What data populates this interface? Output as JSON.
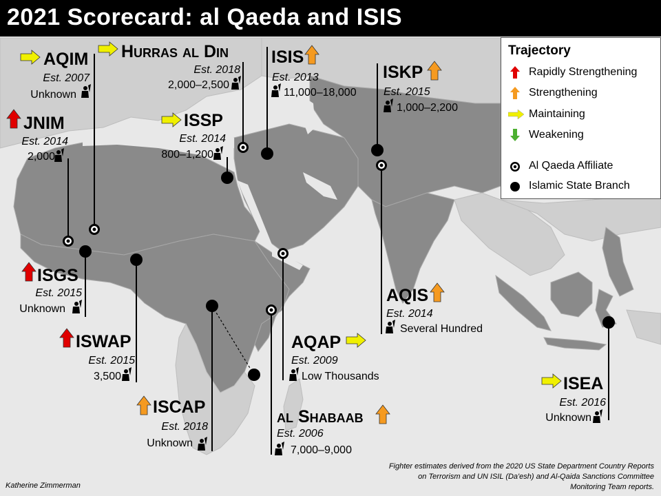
{
  "title": "2021 Scorecard: al Qaeda and ISIS",
  "legend": {
    "title": "Trajectory",
    "items": [
      {
        "label": "Rapidly Strengthening",
        "icon": "red-up-arrow-icon",
        "color": "#e00000"
      },
      {
        "label": "Strengthening",
        "icon": "orange-up-arrow-icon",
        "color": "#f59a20"
      },
      {
        "label": "Maintaining",
        "icon": "yellow-right-arrow-icon",
        "color": "#f0f000"
      },
      {
        "label": "Weakening",
        "icon": "green-down-arrow-icon",
        "color": "#4caf30"
      }
    ],
    "markers": [
      {
        "label": "Al Qaeda Affiliate",
        "icon": "al-qaeda-affiliate-marker-icon"
      },
      {
        "label": "Islamic State Branch",
        "icon": "islamic-state-branch-marker-icon"
      }
    ]
  },
  "groups": [
    {
      "name": "AQIM",
      "est": "Est. 2007",
      "fighters": "Unknown",
      "trajectory": "Maintaining",
      "type": "Al Qaeda Affiliate"
    },
    {
      "name": "Hurras al Din",
      "est": "Est. 2018",
      "fighters": "2,000–2,500",
      "trajectory": "Maintaining",
      "type": "Al Qaeda Affiliate"
    },
    {
      "name": "ISIS",
      "est": "Est. 2013",
      "fighters": "11,000–18,000",
      "trajectory": "Strengthening",
      "type": "Islamic State Branch"
    },
    {
      "name": "ISKP",
      "est": "Est. 2015",
      "fighters": "1,000–2,200",
      "trajectory": "Strengthening",
      "type": "Islamic State Branch"
    },
    {
      "name": "JNIM",
      "est": "Est. 2014",
      "fighters": "2,000",
      "trajectory": "Rapidly Strengthening",
      "type": "Al Qaeda Affiliate"
    },
    {
      "name": "ISSP",
      "est": "Est. 2014",
      "fighters": "800–1,200",
      "trajectory": "Maintaining",
      "type": "Islamic State Branch"
    },
    {
      "name": "ISGS",
      "est": "Est. 2015",
      "fighters": "Unknown",
      "trajectory": "Rapidly Strengthening",
      "type": "Islamic State Branch"
    },
    {
      "name": "AQIS",
      "est": "Est. 2014",
      "fighters": "Several Hundred",
      "trajectory": "Strengthening",
      "type": "Al Qaeda Affiliate"
    },
    {
      "name": "ISWAP",
      "est": "Est. 2015",
      "fighters": "3,500",
      "trajectory": "Rapidly Strengthening",
      "type": "Islamic State Branch"
    },
    {
      "name": "AQAP",
      "est": "Est. 2009",
      "fighters": "Low Thousands",
      "trajectory": "Maintaining",
      "type": "Al Qaeda Affiliate"
    },
    {
      "name": "ISCAP",
      "est": "Est. 2018",
      "fighters": "Unknown",
      "trajectory": "Strengthening",
      "type": "Islamic State Branch"
    },
    {
      "name": "al Shabaab",
      "est": "Est. 2006",
      "fighters": "7,000–9,000",
      "trajectory": "Strengthening",
      "type": "Al Qaeda Affiliate"
    },
    {
      "name": "ISEA",
      "est": "Est. 2016",
      "fighters": "Unknown",
      "trajectory": "Maintaining",
      "type": "Islamic State Branch"
    }
  ],
  "credit": "Katherine Zimmerman",
  "source": "Fighter estimates derived from the 2020 US State Department Country Reports on Terrorism and UN ISIL (Da'esh) and Al-Qaida Sanctions Committee Monitoring Team reports.",
  "colors": {
    "land": "#8a8a8a",
    "land_light": "#cfcfcf",
    "sea": "#e8e8e8",
    "title_bg": "#000000"
  }
}
